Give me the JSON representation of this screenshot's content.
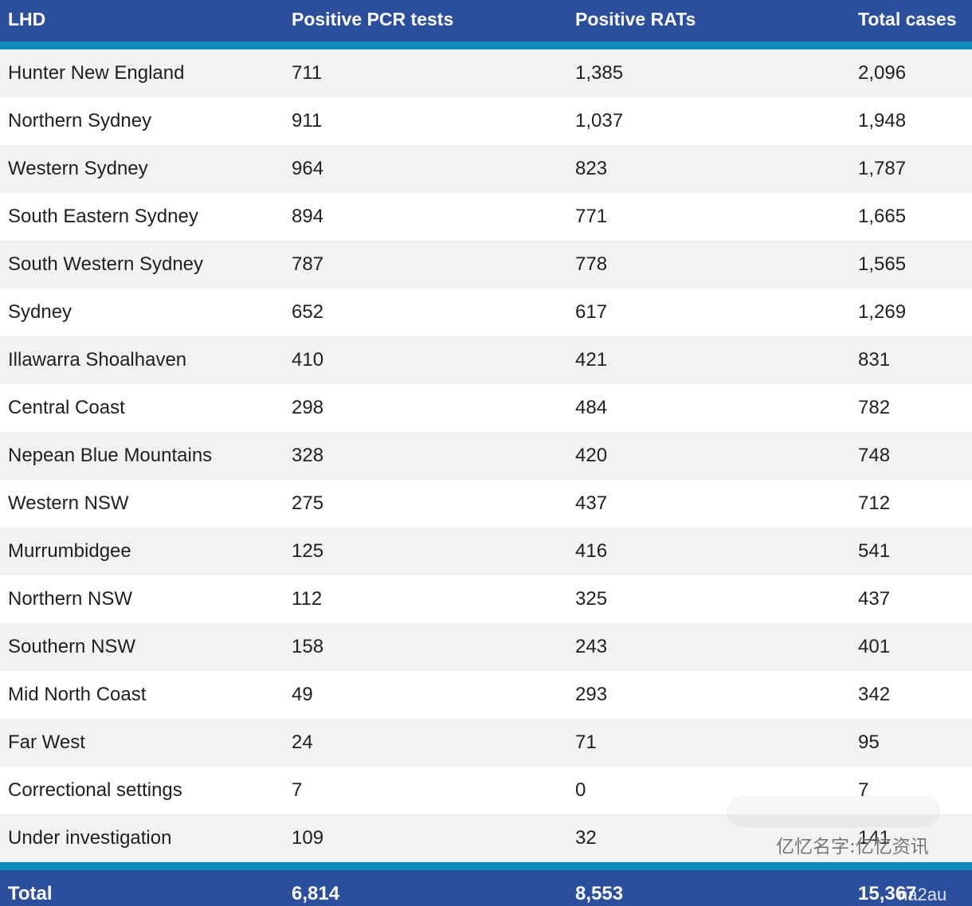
{
  "header": {
    "col_lhd": "LHD",
    "col_pcr": "Positive PCR tests",
    "col_rat": "Positive RATs",
    "col_total": "Total cases"
  },
  "rows": [
    {
      "lhd": "Hunter New England",
      "pcr": "711",
      "rat": "1,385",
      "total": "2,096"
    },
    {
      "lhd": "Northern Sydney",
      "pcr": "911",
      "rat": "1,037",
      "total": "1,948"
    },
    {
      "lhd": "Western Sydney",
      "pcr": "964",
      "rat": "823",
      "total": "1,787"
    },
    {
      "lhd": "South Eastern Sydney",
      "pcr": "894",
      "rat": "771",
      "total": "1,665"
    },
    {
      "lhd": "South Western Sydney",
      "pcr": "787",
      "rat": "778",
      "total": "1,565"
    },
    {
      "lhd": "Sydney",
      "pcr": "652",
      "rat": "617",
      "total": "1,269"
    },
    {
      "lhd": "Illawarra Shoalhaven",
      "pcr": "410",
      "rat": "421",
      "total": "831"
    },
    {
      "lhd": "Central Coast",
      "pcr": "298",
      "rat": "484",
      "total": "782"
    },
    {
      "lhd": "Nepean Blue Mountains",
      "pcr": "328",
      "rat": "420",
      "total": "748"
    },
    {
      "lhd": "Western NSW",
      "pcr": "275",
      "rat": "437",
      "total": "712"
    },
    {
      "lhd": "Murrumbidgee",
      "pcr": "125",
      "rat": "416",
      "total": "541"
    },
    {
      "lhd": "Northern NSW",
      "pcr": "112",
      "rat": "325",
      "total": "437"
    },
    {
      "lhd": "Southern NSW",
      "pcr": "158",
      "rat": "243",
      "total": "401"
    },
    {
      "lhd": "Mid North Coast",
      "pcr": "49",
      "rat": "293",
      "total": "342"
    },
    {
      "lhd": "Far West",
      "pcr": "24",
      "rat": "71",
      "total": "95"
    },
    {
      "lhd": "Correctional settings",
      "pcr": "7",
      "rat": "0",
      "total": "7"
    },
    {
      "lhd": "Under investigation",
      "pcr": "109",
      "rat": "32",
      "total": "141"
    }
  ],
  "footer": {
    "label": "Total",
    "pcr": "6,814",
    "rat": "8,553",
    "total": "15,367"
  },
  "watermark": {
    "text": "亿忆名字:亿忆资讯",
    "footer_text": "na2au"
  },
  "colors": {
    "header_bg": "#2b4f9c",
    "rule": "#0e8cc0",
    "stripe": "#f2f2f2"
  }
}
